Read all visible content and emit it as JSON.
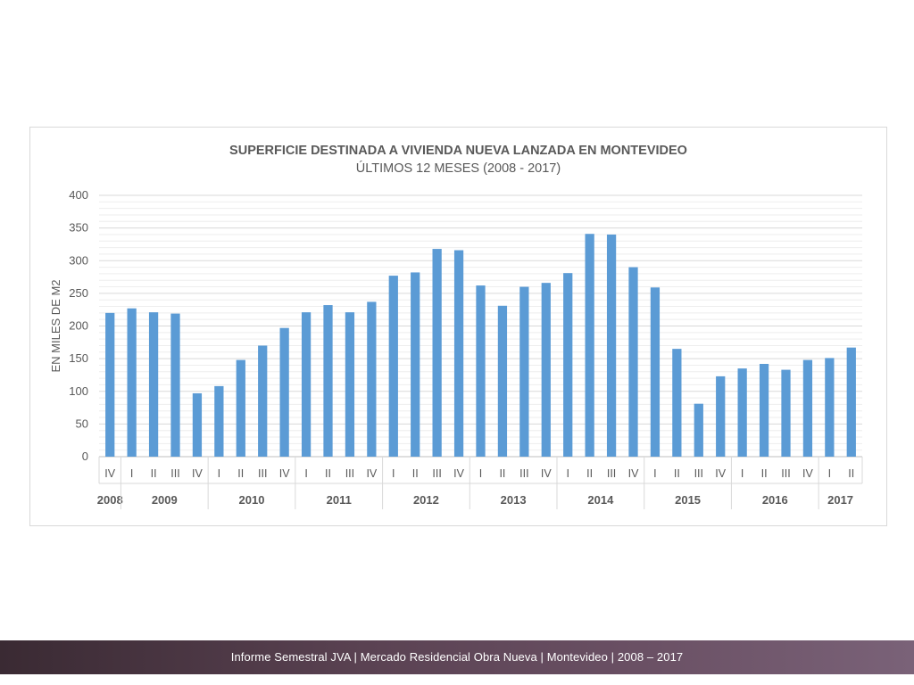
{
  "chart_data": {
    "type": "bar",
    "title": "SUPERFICIE DESTINADA A VIVIENDA NUEVA LANZADA EN MONTEVIDEO",
    "subtitle": "ÚLTIMOS 12 MESES (2008 - 2017)",
    "ylabel": "EN MILES DE M2",
    "ylim": [
      0,
      400
    ],
    "yticks": [
      0,
      50,
      100,
      150,
      200,
      250,
      300,
      350,
      400
    ],
    "grid": true,
    "color": "#5b9bd5",
    "quarters": [
      "IV",
      "I",
      "II",
      "III",
      "IV",
      "I",
      "II",
      "III",
      "IV",
      "I",
      "II",
      "III",
      "IV",
      "I",
      "II",
      "III",
      "IV",
      "I",
      "II",
      "III",
      "IV",
      "I",
      "II",
      "III",
      "IV",
      "I",
      "II",
      "III",
      "IV",
      "I",
      "II",
      "III",
      "IV",
      "I",
      "II"
    ],
    "years": [
      {
        "label": "2008",
        "count": 1
      },
      {
        "label": "2009",
        "count": 4
      },
      {
        "label": "2010",
        "count": 4
      },
      {
        "label": "2011",
        "count": 4
      },
      {
        "label": "2012",
        "count": 4
      },
      {
        "label": "2013",
        "count": 4
      },
      {
        "label": "2014",
        "count": 4
      },
      {
        "label": "2015",
        "count": 4
      },
      {
        "label": "2016",
        "count": 4
      },
      {
        "label": "2017",
        "count": 2
      }
    ],
    "values": [
      220,
      227,
      221,
      219,
      97,
      108,
      148,
      170,
      197,
      221,
      232,
      221,
      237,
      277,
      282,
      318,
      316,
      262,
      231,
      260,
      266,
      281,
      341,
      340,
      290,
      259,
      165,
      81,
      123,
      135,
      142,
      133,
      148,
      151,
      167
    ]
  },
  "footer": {
    "text": "Informe Semestral JVA | Mercado Residencial Obra Nueva | Montevideo | 2008 – 2017"
  }
}
